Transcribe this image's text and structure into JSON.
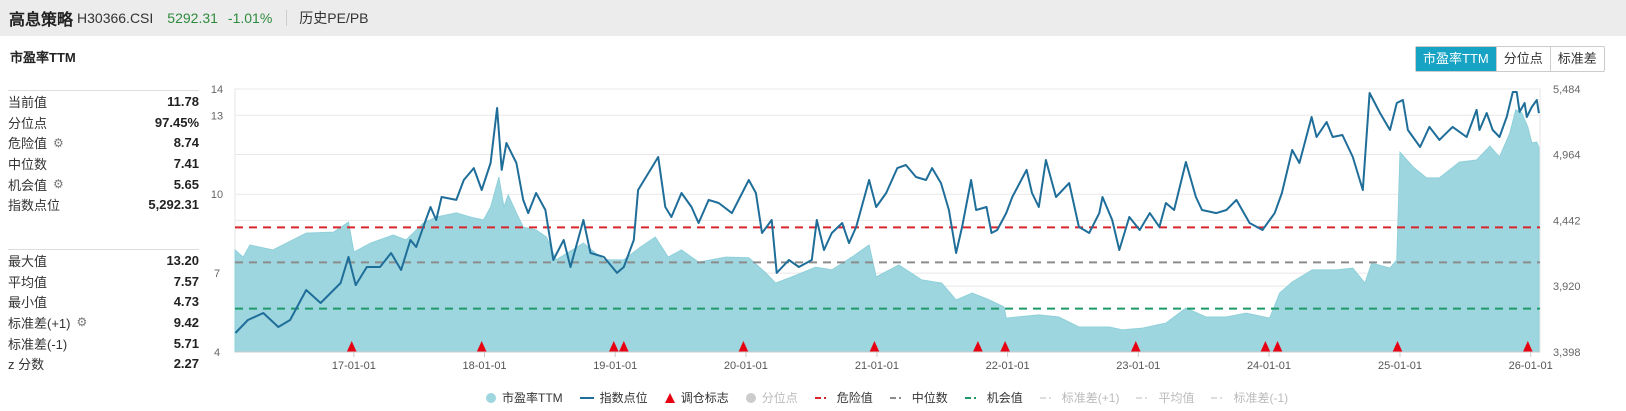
{
  "header": {
    "name": "高息策略",
    "code": "H30366.CSI",
    "price": "5292.31",
    "change": "-1.01%",
    "history_link": "历史PE/PB"
  },
  "card_title": "市盈率TTM",
  "toggle_buttons": [
    {
      "label": "市盈率TTM",
      "active": true
    },
    {
      "label": "分位点",
      "active": false
    },
    {
      "label": "标准差",
      "active": false
    }
  ],
  "stats_primary": [
    {
      "label": "当前值",
      "value": "11.78",
      "gear": false
    },
    {
      "label": "分位点",
      "value": "97.45%",
      "gear": false
    },
    {
      "label": "危险值",
      "value": "8.74",
      "gear": true
    },
    {
      "label": "中位数",
      "value": "7.41",
      "gear": false
    },
    {
      "label": "机会值",
      "value": "5.65",
      "gear": true
    },
    {
      "label": "指数点位",
      "value": "5,292.31",
      "gear": false
    }
  ],
  "stats_secondary": [
    {
      "label": "最大值",
      "value": "13.20",
      "gear": false
    },
    {
      "label": "平均值",
      "value": "7.57",
      "gear": false
    },
    {
      "label": "最小值",
      "value": "4.73",
      "gear": false
    },
    {
      "label": "标准差(+1)",
      "value": "9.42",
      "gear": true
    },
    {
      "label": "标准差(-1)",
      "value": "5.71",
      "gear": false
    },
    {
      "label": "z 分数",
      "value": "2.27",
      "gear": false
    }
  ],
  "colors": {
    "area": "#9ed6df",
    "area_edge": "#8fd0da",
    "index_line": "#1f6e99",
    "danger": "#d7262b",
    "median": "#8c8c8c",
    "chance": "#1d9a68",
    "marker": "#e60012",
    "accent": "#17a3c4",
    "up_down": "#2e8b3e"
  },
  "chart_data": {
    "type": "area+line",
    "x_range": [
      "2016-02-04",
      "2026-01-27"
    ],
    "x_ticks": [
      "17-01-01",
      "18-01-01",
      "19-01-01",
      "20-01-01",
      "21-01-01",
      "22-01-01",
      "23-01-01",
      "24-01-01",
      "25-01-01",
      "26-01-01"
    ],
    "x_tick_dates": [
      "2017-01-01",
      "2018-01-01",
      "2019-01-01",
      "2020-01-01",
      "2021-01-01",
      "2022-01-01",
      "2023-01-01",
      "2024-01-01",
      "2025-01-01",
      "2026-01-01"
    ],
    "y_left": {
      "range": [
        4,
        14
      ],
      "ticks": [
        "4",
        "7",
        "10",
        "13",
        "14"
      ]
    },
    "y_right": {
      "range": [
        3398,
        5484
      ],
      "ticks": [
        "3,398",
        "3,920",
        "4,442",
        "4,964",
        "5,484"
      ]
    },
    "grid": true,
    "legend_position": "bottom",
    "reference_lines": [
      {
        "name": "危险值",
        "value": 8.74,
        "color": "#d7262b"
      },
      {
        "name": "中位数",
        "value": 7.41,
        "color": "#8c8c8c"
      },
      {
        "name": "机会值",
        "value": 5.65,
        "color": "#1d9a68"
      }
    ],
    "legend": [
      {
        "label": "市盈率TTM",
        "kind": "dot",
        "color": "#9ed6df",
        "enabled": true
      },
      {
        "label": "指数点位",
        "kind": "line",
        "color": "#1f6e99",
        "enabled": true
      },
      {
        "label": "调仓标志",
        "kind": "triangle",
        "color": "#e60012",
        "enabled": true
      },
      {
        "label": "分位点",
        "kind": "dot",
        "color": "#cccccc",
        "enabled": false
      },
      {
        "label": "危险值",
        "kind": "dash",
        "color": "#d7262b",
        "enabled": true
      },
      {
        "label": "中位数",
        "kind": "dash",
        "color": "#8c8c8c",
        "enabled": true
      },
      {
        "label": "机会值",
        "kind": "dash",
        "color": "#1d9a68",
        "enabled": true
      },
      {
        "label": "标准差(+1)",
        "kind": "dash",
        "color": "#dddddd",
        "enabled": false
      },
      {
        "label": "平均值",
        "kind": "dash",
        "color": "#dddddd",
        "enabled": false
      },
      {
        "label": "标准差(-1)",
        "kind": "dash",
        "color": "#dddddd",
        "enabled": false
      }
    ],
    "pe_series": {
      "name": "市盈率TTM",
      "points": [
        [
          "2016-02-04",
          7.88
        ],
        [
          "2016-02-27",
          7.61
        ],
        [
          "2016-03-17",
          8.07
        ],
        [
          "2016-05-20",
          7.88
        ],
        [
          "2016-08-21",
          8.52
        ],
        [
          "2016-11-06",
          8.56
        ],
        [
          "2016-12-17",
          8.94
        ],
        [
          "2017-01-01",
          7.8
        ],
        [
          "2017-02-17",
          8.14
        ],
        [
          "2017-04-21",
          8.45
        ],
        [
          "2017-05-27",
          8.26
        ],
        [
          "2017-07-14",
          8.9
        ],
        [
          "2017-08-19",
          9.13
        ],
        [
          "2017-10-14",
          9.29
        ],
        [
          "2017-11-23",
          9.13
        ],
        [
          "2017-12-29",
          9.02
        ],
        [
          "2018-01-18",
          9.51
        ],
        [
          "2018-02-10",
          10.65
        ],
        [
          "2018-02-24",
          9.51
        ],
        [
          "2018-03-08",
          9.97
        ],
        [
          "2018-03-31",
          9.29
        ],
        [
          "2018-04-19",
          8.75
        ],
        [
          "2018-05-25",
          8.64
        ],
        [
          "2018-06-23",
          8.37
        ],
        [
          "2018-07-20",
          7.5
        ],
        [
          "2018-10-04",
          8.14
        ],
        [
          "2018-11-30",
          7.5
        ],
        [
          "2019-01-25",
          7.5
        ],
        [
          "2019-03-12",
          7.99
        ],
        [
          "2019-04-23",
          8.37
        ],
        [
          "2019-05-29",
          7.61
        ],
        [
          "2019-07-05",
          7.88
        ],
        [
          "2019-08-22",
          7.42
        ],
        [
          "2019-11-06",
          7.61
        ],
        [
          "2020-01-09",
          7.58
        ],
        [
          "2020-02-26",
          7.0
        ],
        [
          "2020-03-24",
          6.62
        ],
        [
          "2020-05-08",
          6.85
        ],
        [
          "2020-07-14",
          7.23
        ],
        [
          "2020-08-28",
          7.12
        ],
        [
          "2020-10-23",
          7.61
        ],
        [
          "2020-12-10",
          8.07
        ],
        [
          "2020-12-30",
          6.85
        ],
        [
          "2021-03-03",
          7.31
        ],
        [
          "2021-05-06",
          6.74
        ],
        [
          "2021-07-01",
          6.62
        ],
        [
          "2021-08-10",
          5.98
        ],
        [
          "2021-09-24",
          6.24
        ],
        [
          "2021-11-11",
          5.98
        ],
        [
          "2021-12-22",
          5.71
        ],
        [
          "2021-12-28",
          5.29
        ],
        [
          "2022-03-29",
          5.41
        ],
        [
          "2022-05-24",
          5.33
        ],
        [
          "2022-07-19",
          4.95
        ],
        [
          "2022-10-12",
          4.95
        ],
        [
          "2022-11-17",
          4.84
        ],
        [
          "2023-01-13",
          4.91
        ],
        [
          "2023-03-19",
          5.1
        ],
        [
          "2023-05-14",
          5.67
        ],
        [
          "2023-07-09",
          5.33
        ],
        [
          "2023-09-04",
          5.33
        ],
        [
          "2023-10-29",
          5.48
        ],
        [
          "2024-01-03",
          5.29
        ],
        [
          "2024-01-31",
          6.24
        ],
        [
          "2024-03-06",
          6.66
        ],
        [
          "2024-05-01",
          7.12
        ],
        [
          "2024-07-08",
          7.12
        ],
        [
          "2024-08-22",
          7.19
        ],
        [
          "2024-09-25",
          6.62
        ],
        [
          "2024-10-14",
          7.38
        ],
        [
          "2024-12-04",
          7.19
        ],
        [
          "2024-12-23",
          7.5
        ],
        [
          "2025-01-01",
          11.6
        ],
        [
          "2025-02-07",
          11.03
        ],
        [
          "2025-03-16",
          10.62
        ],
        [
          "2025-04-21",
          10.62
        ],
        [
          "2025-06-16",
          11.22
        ],
        [
          "2025-08-03",
          11.3
        ],
        [
          "2025-09-09",
          11.83
        ],
        [
          "2025-10-06",
          11.41
        ],
        [
          "2025-11-04",
          12.33
        ],
        [
          "2025-11-20",
          13.2
        ],
        [
          "2025-12-07",
          13.09
        ],
        [
          "2025-12-24",
          12.56
        ],
        [
          "2026-01-04",
          11.95
        ],
        [
          "2026-01-18",
          11.98
        ],
        [
          "2026-01-24",
          11.78
        ]
      ]
    },
    "index_series": {
      "name": "指数点位",
      "points": [
        [
          "2016-02-05",
          3549
        ],
        [
          "2016-03-11",
          3652
        ],
        [
          "2016-04-23",
          3707
        ],
        [
          "2016-06-04",
          3596
        ],
        [
          "2016-07-07",
          3652
        ],
        [
          "2016-08-21",
          3890
        ],
        [
          "2016-09-30",
          3787
        ],
        [
          "2016-11-25",
          3945
        ],
        [
          "2016-12-17",
          4152
        ],
        [
          "2017-01-06",
          3929
        ],
        [
          "2017-02-06",
          4072
        ],
        [
          "2017-03-15",
          4072
        ],
        [
          "2017-04-15",
          4183
        ],
        [
          "2017-05-13",
          4048
        ],
        [
          "2017-06-08",
          4286
        ],
        [
          "2017-06-24",
          4231
        ],
        [
          "2017-07-14",
          4390
        ],
        [
          "2017-08-03",
          4548
        ],
        [
          "2017-08-19",
          4445
        ],
        [
          "2017-09-03",
          4627
        ],
        [
          "2017-10-14",
          4604
        ],
        [
          "2017-11-04",
          4762
        ],
        [
          "2017-12-02",
          4857
        ],
        [
          "2017-12-24",
          4683
        ],
        [
          "2018-01-18",
          4897
        ],
        [
          "2018-02-05",
          5333
        ],
        [
          "2018-02-18",
          4842
        ],
        [
          "2018-03-03",
          5056
        ],
        [
          "2018-03-31",
          4897
        ],
        [
          "2018-04-19",
          4604
        ],
        [
          "2018-05-03",
          4500
        ],
        [
          "2018-05-25",
          4659
        ],
        [
          "2018-06-20",
          4524
        ],
        [
          "2018-07-12",
          4128
        ],
        [
          "2018-08-10",
          4286
        ],
        [
          "2018-08-29",
          4072
        ],
        [
          "2018-10-04",
          4445
        ],
        [
          "2018-10-24",
          4183
        ],
        [
          "2018-11-30",
          4152
        ],
        [
          "2019-01-06",
          4025
        ],
        [
          "2019-01-25",
          4072
        ],
        [
          "2019-02-22",
          4286
        ],
        [
          "2019-03-06",
          4683
        ],
        [
          "2019-05-01",
          4945
        ],
        [
          "2019-05-21",
          4548
        ],
        [
          "2019-06-07",
          4469
        ],
        [
          "2019-07-05",
          4659
        ],
        [
          "2019-08-02",
          4548
        ],
        [
          "2019-08-22",
          4421
        ],
        [
          "2019-09-19",
          4604
        ],
        [
          "2019-10-17",
          4580
        ],
        [
          "2019-11-23",
          4500
        ],
        [
          "2020-01-09",
          4762
        ],
        [
          "2020-01-29",
          4659
        ],
        [
          "2020-02-15",
          4342
        ],
        [
          "2020-03-13",
          4445
        ],
        [
          "2020-03-27",
          4025
        ],
        [
          "2020-04-30",
          4128
        ],
        [
          "2020-05-28",
          4072
        ],
        [
          "2020-07-03",
          4128
        ],
        [
          "2020-07-17",
          4445
        ],
        [
          "2020-08-06",
          4207
        ],
        [
          "2020-08-28",
          4342
        ],
        [
          "2020-09-26",
          4421
        ],
        [
          "2020-10-15",
          4262
        ],
        [
          "2020-11-04",
          4390
        ],
        [
          "2020-12-10",
          4762
        ],
        [
          "2020-12-30",
          4548
        ],
        [
          "2021-01-27",
          4659
        ],
        [
          "2021-02-27",
          4857
        ],
        [
          "2021-03-23",
          4881
        ],
        [
          "2021-04-20",
          4786
        ],
        [
          "2021-05-18",
          4762
        ],
        [
          "2021-06-04",
          4857
        ],
        [
          "2021-06-29",
          4738
        ],
        [
          "2021-07-21",
          4524
        ],
        [
          "2021-08-10",
          4183
        ],
        [
          "2021-08-27",
          4390
        ],
        [
          "2021-09-21",
          4762
        ],
        [
          "2021-10-05",
          4524
        ],
        [
          "2021-11-03",
          4548
        ],
        [
          "2021-11-17",
          4342
        ],
        [
          "2021-12-03",
          4366
        ],
        [
          "2021-12-28",
          4500
        ],
        [
          "2022-01-14",
          4627
        ],
        [
          "2022-02-23",
          4842
        ],
        [
          "2022-03-10",
          4659
        ],
        [
          "2022-03-29",
          4548
        ],
        [
          "2022-04-18",
          4921
        ],
        [
          "2022-05-16",
          4627
        ],
        [
          "2022-06-22",
          4738
        ],
        [
          "2022-07-19",
          4390
        ],
        [
          "2022-08-17",
          4342
        ],
        [
          "2022-09-14",
          4500
        ],
        [
          "2022-09-23",
          4627
        ],
        [
          "2022-10-20",
          4445
        ],
        [
          "2022-11-09",
          4207
        ],
        [
          "2022-12-07",
          4469
        ],
        [
          "2023-01-05",
          4366
        ],
        [
          "2023-02-02",
          4500
        ],
        [
          "2023-03-01",
          4390
        ],
        [
          "2023-03-19",
          4580
        ],
        [
          "2023-04-11",
          4524
        ],
        [
          "2023-05-14",
          4905
        ],
        [
          "2023-06-11",
          4627
        ],
        [
          "2023-06-28",
          4524
        ],
        [
          "2023-08-07",
          4500
        ],
        [
          "2023-09-04",
          4524
        ],
        [
          "2023-10-02",
          4604
        ],
        [
          "2023-11-08",
          4421
        ],
        [
          "2023-12-14",
          4366
        ],
        [
          "2024-01-17",
          4500
        ],
        [
          "2024-02-06",
          4659
        ],
        [
          "2024-03-06",
          5000
        ],
        [
          "2024-03-26",
          4897
        ],
        [
          "2024-04-29",
          5262
        ],
        [
          "2024-05-13",
          5103
        ],
        [
          "2024-06-10",
          5222
        ],
        [
          "2024-06-27",
          5103
        ],
        [
          "2024-07-24",
          5119
        ],
        [
          "2024-08-22",
          4945
        ],
        [
          "2024-09-19",
          4683
        ],
        [
          "2024-10-08",
          5452
        ],
        [
          "2024-11-06",
          5294
        ],
        [
          "2024-12-04",
          5159
        ],
        [
          "2024-12-23",
          5373
        ],
        [
          "2025-01-09",
          5397
        ],
        [
          "2025-01-23",
          5159
        ],
        [
          "2025-02-26",
          5024
        ],
        [
          "2025-03-24",
          5183
        ],
        [
          "2025-04-21",
          5080
        ],
        [
          "2025-05-28",
          5183
        ],
        [
          "2025-07-06",
          5103
        ],
        [
          "2025-08-03",
          5318
        ],
        [
          "2025-08-11",
          5159
        ],
        [
          "2025-08-31",
          5294
        ],
        [
          "2025-09-17",
          5159
        ],
        [
          "2025-10-06",
          5103
        ],
        [
          "2025-10-26",
          5262
        ],
        [
          "2025-11-12",
          5460
        ],
        [
          "2025-11-23",
          5460
        ],
        [
          "2025-12-01",
          5302
        ],
        [
          "2025-12-15",
          5373
        ],
        [
          "2025-12-21",
          5262
        ],
        [
          "2026-01-04",
          5341
        ],
        [
          "2026-01-18",
          5397
        ],
        [
          "2026-01-24",
          5292.31
        ]
      ]
    },
    "rebalance_markers": [
      "2016-12-26",
      "2017-12-24",
      "2018-12-28",
      "2019-01-25",
      "2019-12-25",
      "2020-12-25",
      "2021-10-10",
      "2021-12-25",
      "2022-12-25",
      "2023-12-22",
      "2024-01-25",
      "2024-12-25",
      "2025-12-24"
    ]
  }
}
